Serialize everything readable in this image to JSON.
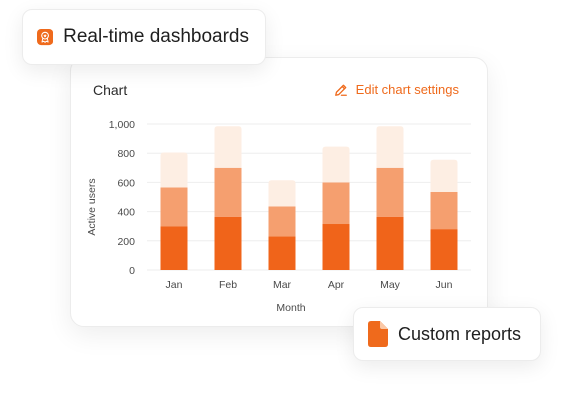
{
  "badges": {
    "realtime_label": "Real-time dashboards",
    "realtime_icon": "award-ribbon-icon",
    "reports_label": "Custom reports",
    "reports_icon": "document-icon"
  },
  "card": {
    "title": "Chart",
    "edit_label": "Edit chart settings",
    "edit_icon": "pencil-icon"
  },
  "colors": {
    "accent": "#ef6a1c",
    "bar_dark": "#f0641a",
    "bar_mid": "#f59f6f",
    "bar_light": "#fdeee3"
  },
  "chart_data": {
    "type": "bar",
    "stacked": true,
    "categories": [
      "Jan",
      "Feb",
      "Mar",
      "Apr",
      "May",
      "Jun"
    ],
    "series": [
      {
        "values": [
          300,
          365,
          230,
          315,
          365,
          280
        ]
      },
      {
        "values": [
          265,
          335,
          205,
          285,
          335,
          255
        ]
      },
      {
        "values": [
          240,
          285,
          180,
          245,
          285,
          220
        ]
      }
    ],
    "xlabel": "Month",
    "ylabel": "Active users",
    "ylim": [
      0,
      1000
    ],
    "yticks": [
      0,
      200,
      400,
      600,
      800,
      1000
    ],
    "ytick_labels": [
      "0",
      "200",
      "400",
      "600",
      "800",
      "1,000"
    ],
    "grid": true,
    "legend": "none"
  }
}
